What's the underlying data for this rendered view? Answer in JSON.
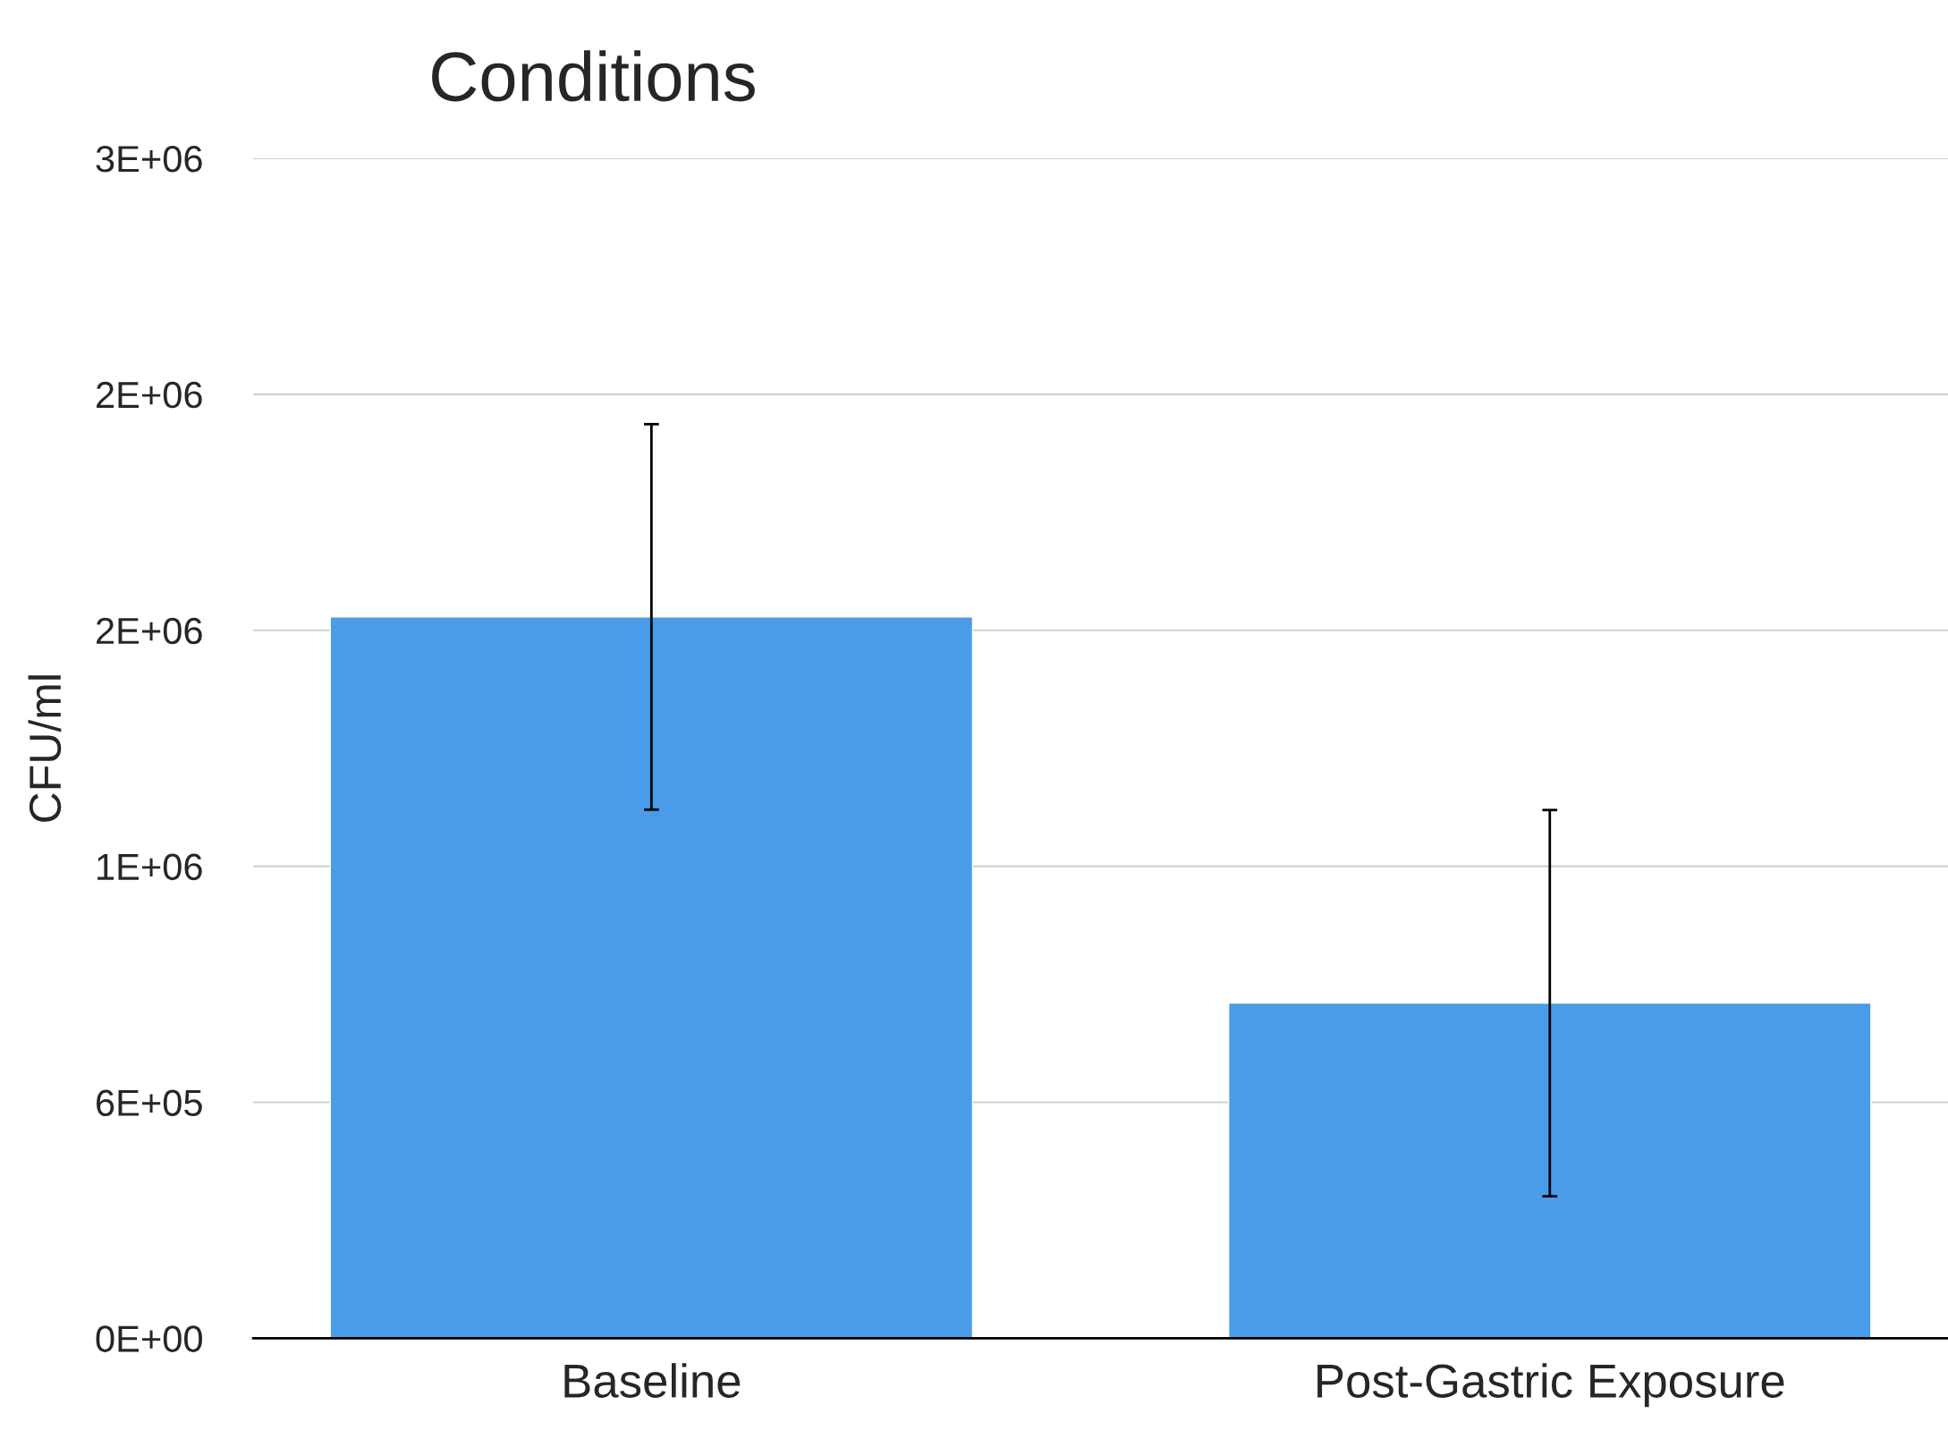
{
  "chart_data": {
    "type": "bar",
    "title": "Conditions",
    "ylabel": "CFU/ml",
    "categories": [
      "Baseline",
      "Post-Gastric Exposure"
    ],
    "values": [
      1834000,
      852000
    ],
    "errors": [
      490000,
      491000
    ],
    "color": "#4a9be8",
    "ylim": [
      0,
      3000000
    ],
    "yticks": [
      {
        "value": 0,
        "label": "0E+00"
      },
      {
        "value": 600000,
        "label": "6E+05"
      },
      {
        "value": 1200000,
        "label": "1E+06"
      },
      {
        "value": 1800000,
        "label": "2E+06"
      },
      {
        "value": 2400000,
        "label": "2E+06"
      },
      {
        "value": 3000000,
        "label": "3E+06"
      }
    ],
    "grid": "y",
    "legend": false
  }
}
